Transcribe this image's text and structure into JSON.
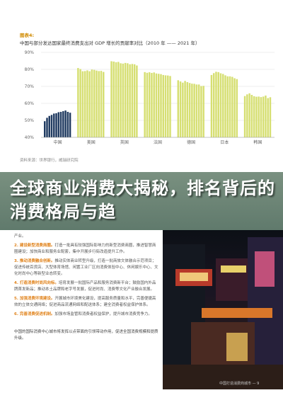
{
  "figure": {
    "label": "图表4:",
    "title": "中国与部分发达国家最终消费支出对 GDP 增长的贡献率对比（2010 年 —— 2021 年）",
    "source": "资料来源：世界银行，威瑞研究院"
  },
  "chart_data": {
    "type": "bar",
    "title": "中国与部分发达国家最终消费支出对 GDP 增长的贡献率对比（2010 年 —— 2021 年）",
    "ylim": [
      40,
      90
    ],
    "yticks": [
      "90%",
      "80%",
      "70%",
      "60%",
      "50%",
      "40%"
    ],
    "groups": [
      {
        "name": "中国",
        "color": "#1f3a60",
        "values": [
          49.5,
          51.5,
          52.6,
          53.2,
          54.0,
          54.2,
          54.8,
          55.0,
          55.4,
          55.8,
          55.0,
          54.5
        ]
      },
      {
        "name": "美国",
        "color": "#d6df72",
        "values": [
          80.8,
          80.2,
          78.9,
          79.0,
          79.4,
          78.9,
          79.9,
          79.7,
          79.3,
          79.0,
          79.1,
          78.5
        ]
      },
      {
        "name": "英国",
        "color": "#d6df72",
        "values": [
          84.8,
          84.6,
          84.2,
          84.4,
          83.6,
          83.4,
          83.8,
          83.6,
          83.0,
          83.2,
          83.0,
          82.3
        ]
      },
      {
        "name": "法国",
        "color": "#d6df72",
        "values": [
          78.4,
          78.0,
          78.3,
          77.9,
          78.2,
          77.6,
          77.4,
          77.2,
          76.7,
          76.5,
          76.4,
          76.1
        ]
      },
      {
        "name": "德国",
        "color": "#d6df72",
        "values": [
          73.6,
          72.9,
          72.2,
          73.2,
          72.5,
          72.0,
          71.6,
          71.5,
          71.1,
          71.1,
          70.2,
          70.3
        ]
      },
      {
        "name": "日本",
        "color": "#d6df72",
        "values": [
          76.7,
          77.8,
          78.6,
          78.4,
          77.7,
          77.3,
          76.5,
          75.9,
          75.9,
          75.6,
          74.8,
          74.3
        ]
      },
      {
        "name": "韩国",
        "color": "#d6df72",
        "values": [
          64.3,
          65.3,
          65.9,
          65.0,
          64.2,
          63.9,
          64.0,
          63.7,
          64.0,
          64.6,
          63.1,
          63.6
        ]
      }
    ]
  },
  "banner": {
    "text": "全球商业消费大揭秘，排名背后的消费格局与趋"
  },
  "column": {
    "items": [
      {
        "head": "",
        "body": "产业。"
      },
      {
        "head": "2. 建设新型消费商圈。",
        "body": "打造一批具有较强国际影响力的新型消费商圈，推进智慧商圈建设；加快商业和服务业配套，集中开展步行街改造提升工作。"
      },
      {
        "head": "3. 推动消费融合创新。",
        "body": "推动实体商业转型升级，打造一批商旅文体融合示范项目；促进传统百货店、大型体育场馆、闲置工业厂区向消费体验中心、休闲娱乐中心、文化时尚中心等新型业态转变。"
      },
      {
        "head": "4. 打造消费时尚风向标。",
        "body": "培育发展一批国际产品和服务消费新平台；鼓励国内外品牌首发新品；推动本土品牌和老字号发展，促进时尚、消费等文化产业融合发展。"
      },
      {
        "head": "5. 加强消费环境建设。",
        "body": "开展城市环境美化建设，提高服务质量和水平，完善便捷高效的立体交通网络；促进商品流通网络和配送体系；建全消费者权益保护体系。"
      },
      {
        "head": "6. 完善消费促进机制。",
        "body": "加强市场监管和消费者权益保护，提升城市消费竞争力。"
      }
    ],
    "closing": "中国的国际消费中心城市将发挥以点带面的引领带动作用，促进全国消费规模和提质升级。"
  },
  "photo": {
    "caption": "中国打造消费商城市 — 9"
  }
}
